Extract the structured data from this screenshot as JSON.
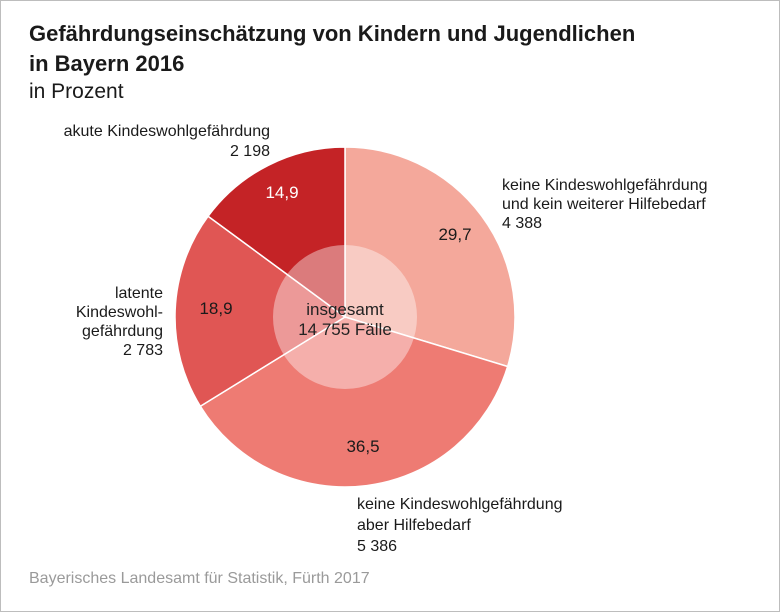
{
  "header": {
    "title_line1": "Gefährdungseinschätzung von Kindern und Jugendlichen",
    "title_line2": "in Bayern 2016",
    "subtitle": "in Prozent"
  },
  "source": "Bayerisches Landesamt für Statistik, Fürth 2017",
  "chart_data": {
    "type": "pie",
    "title": "Gefährdungseinschätzung von Kindern und Jugendlichen in Bayern 2016",
    "subtitle": "in Prozent",
    "center_label": [
      "insgesamt",
      "14 755 Fälle"
    ],
    "slices": [
      {
        "label_lines": [
          "keine Kindeswohlgefährdung",
          "und kein weiterer Hilfebedarf"
        ],
        "count": "4 388",
        "percent": 29.7,
        "percent_label": "29,7",
        "color": "#f4a89b",
        "pct_color": "#1a1a1a"
      },
      {
        "label_lines": [
          "keine Kindeswohlgefährdung",
          "aber Hilfebedarf"
        ],
        "count": "5 386",
        "percent": 36.5,
        "percent_label": "36,5",
        "color": "#ee7b73",
        "pct_color": "#1a1a1a"
      },
      {
        "label_lines": [
          "latente",
          "Kindeswohl-",
          "gefährdung"
        ],
        "count": "2 783",
        "percent": 18.9,
        "percent_label": "18,9",
        "color": "#e05654",
        "pct_color": "#1a1a1a"
      },
      {
        "label_lines": [
          "akute Kindeswohlgefährdung"
        ],
        "count": "2 198",
        "percent": 14.9,
        "percent_label": "14,9",
        "color": "#c42326",
        "pct_color": "#ffffff"
      }
    ]
  }
}
